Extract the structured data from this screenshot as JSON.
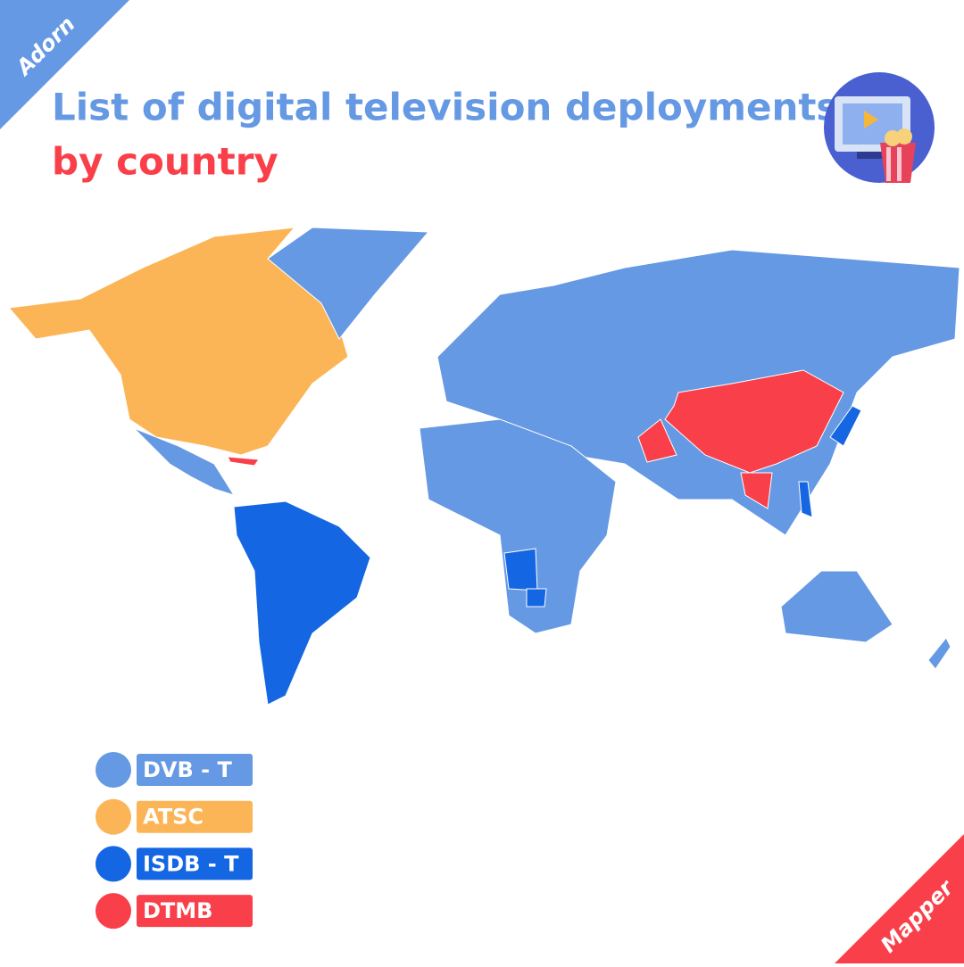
{
  "corner_labels": {
    "top_left": "Adorn",
    "bottom_right": "Mapper"
  },
  "header": {
    "title_line1": "List of digital television deployments",
    "title_line2": "by country"
  },
  "legend": [
    {
      "label": "DVB - T",
      "color": "#6699e3"
    },
    {
      "label": "ATSC",
      "color": "#fbb557"
    },
    {
      "label": "ISDB - T",
      "color": "#1466e2"
    },
    {
      "label": "DTMB",
      "color": "#f9404a"
    }
  ]
}
